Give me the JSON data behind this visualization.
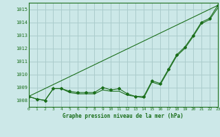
{
  "title": "Graphe pression niveau de la mer (hPa)",
  "bg_color": "#cce8e8",
  "grid_color": "#aacccc",
  "line_color": "#1a6e1a",
  "xlim": [
    0,
    23
  ],
  "ylim": [
    1007.5,
    1015.5
  ],
  "yticks": [
    1008,
    1009,
    1010,
    1011,
    1012,
    1013,
    1014,
    1015
  ],
  "xticks": [
    0,
    1,
    2,
    3,
    4,
    5,
    6,
    7,
    8,
    9,
    10,
    11,
    12,
    13,
    14,
    15,
    16,
    17,
    18,
    19,
    20,
    21,
    22,
    23
  ],
  "series1_x": [
    0,
    1,
    2,
    3,
    4,
    5,
    6,
    7,
    8,
    9,
    10,
    11,
    12,
    13,
    14,
    15,
    16,
    17,
    18,
    19,
    20,
    21,
    22,
    23
  ],
  "series1_y": [
    1008.3,
    1008.1,
    1008.0,
    1008.9,
    1008.9,
    1008.7,
    1008.6,
    1008.6,
    1008.6,
    1009.0,
    1008.8,
    1008.9,
    1008.5,
    1008.3,
    1008.3,
    1009.5,
    1009.3,
    1010.4,
    1011.5,
    1012.1,
    1013.0,
    1014.0,
    1014.3,
    1015.3
  ],
  "series2_x": [
    0,
    1,
    2,
    3,
    4,
    5,
    6,
    7,
    8,
    9,
    10,
    11,
    12,
    13,
    14,
    15,
    16,
    17,
    18,
    19,
    20,
    21,
    22,
    23
  ],
  "series2_y": [
    1008.3,
    1008.1,
    1008.0,
    1008.9,
    1008.9,
    1008.6,
    1008.5,
    1008.5,
    1008.5,
    1008.8,
    1008.7,
    1008.7,
    1008.4,
    1008.3,
    1008.2,
    1009.4,
    1009.2,
    1010.3,
    1011.4,
    1012.0,
    1012.9,
    1013.9,
    1014.2,
    1015.1
  ],
  "series3_x": [
    0,
    23
  ],
  "series3_y": [
    1008.3,
    1015.3
  ],
  "marker_size": 2.0,
  "figwidth": 3.2,
  "figheight": 2.0,
  "dpi": 100
}
